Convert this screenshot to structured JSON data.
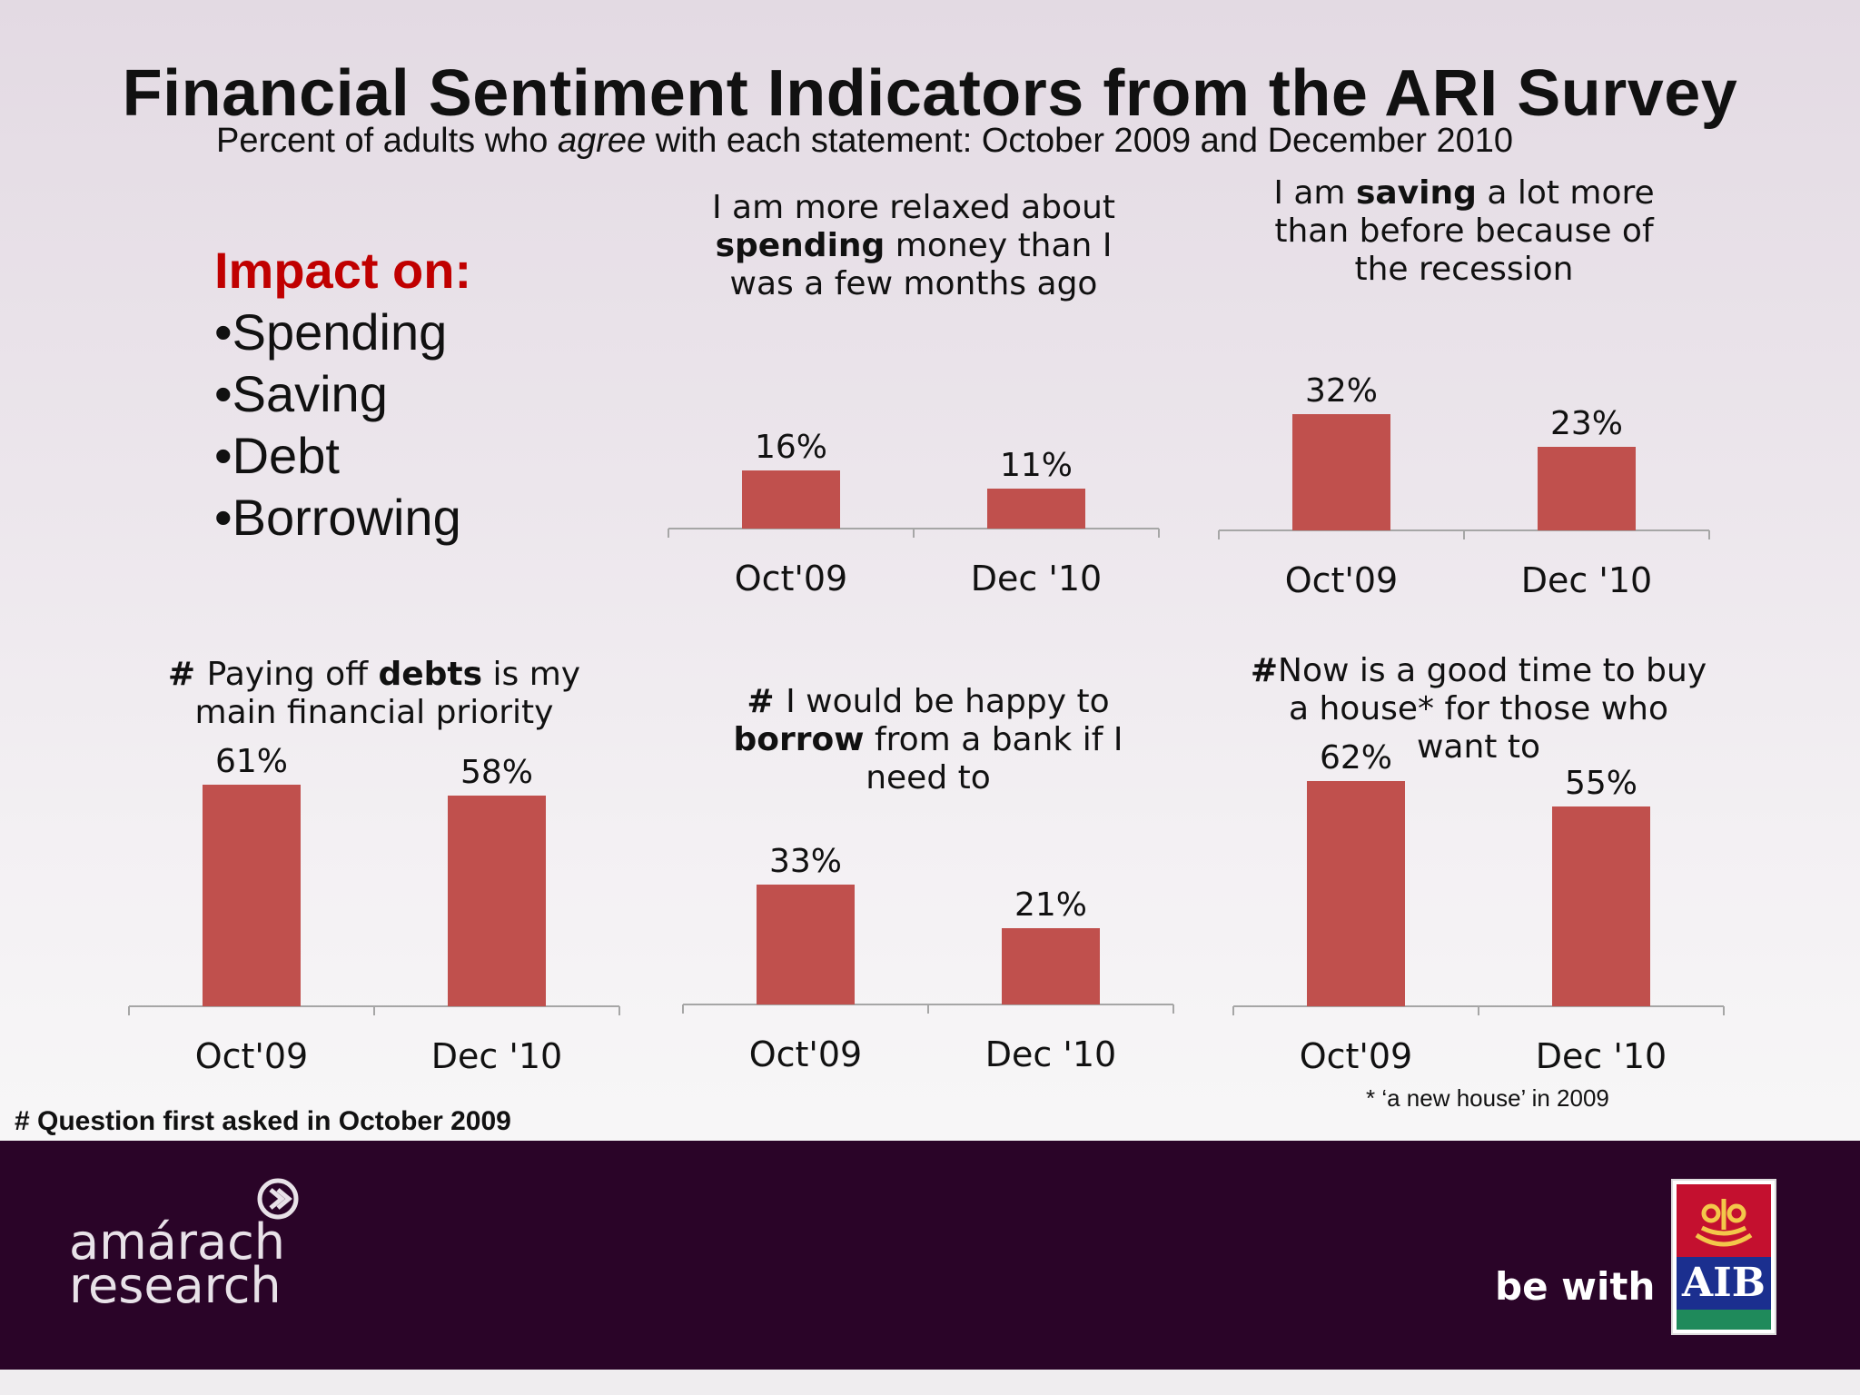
{
  "title": "Financial Sentiment Indicators from the ARI Survey",
  "subtitle": {
    "before": "Percent of adults who ",
    "emph": "agree",
    "after": " with each statement: October 2009 and December 2010"
  },
  "impact": {
    "heading": "Impact on:",
    "items": [
      "•Spending",
      "•Saving",
      "•Debt",
      "•Borrowing"
    ]
  },
  "colors": {
    "bar": "#c0504d",
    "axis": "#a6a6a6",
    "impact_heading": "#c00000",
    "footer": "#2a0428"
  },
  "chart_data": [
    {
      "type": "bar",
      "title_parts": [
        {
          "text": "I am more relaxed about",
          "bold": false,
          "newline": true
        },
        {
          "text": "spending",
          "bold": true,
          "newline": false
        },
        {
          "text": " money than I",
          "bold": false,
          "newline": true
        },
        {
          "text": "was a few months ago",
          "bold": false,
          "newline": false
        }
      ],
      "categories": [
        "Oct'09",
        "Dec '10"
      ],
      "values": [
        16,
        11
      ],
      "labels": [
        "16%",
        "11%"
      ],
      "ylim": [
        0,
        70
      ]
    },
    {
      "type": "bar",
      "title_parts": [
        {
          "text": "I am ",
          "bold": false,
          "newline": false
        },
        {
          "text": "saving",
          "bold": true,
          "newline": false
        },
        {
          "text": " a lot more",
          "bold": false,
          "newline": true
        },
        {
          "text": "than before because of",
          "bold": false,
          "newline": true
        },
        {
          "text": "the recession",
          "bold": false,
          "newline": false
        }
      ],
      "categories": [
        "Oct'09",
        "Dec '10"
      ],
      "values": [
        32,
        23
      ],
      "labels": [
        "32%",
        "23%"
      ],
      "ylim": [
        0,
        70
      ]
    },
    {
      "type": "bar",
      "title_parts": [
        {
          "text": "# ",
          "bold": true,
          "newline": false
        },
        {
          "text": "Paying  off ",
          "bold": false,
          "newline": false
        },
        {
          "text": "debts",
          "bold": true,
          "newline": false
        },
        {
          "text": " is my",
          "bold": false,
          "newline": true
        },
        {
          "text": "main financial priority",
          "bold": false,
          "newline": false
        }
      ],
      "categories": [
        "Oct'09",
        "Dec '10"
      ],
      "values": [
        61,
        58
      ],
      "labels": [
        "61%",
        "58%"
      ],
      "ylim": [
        0,
        70
      ]
    },
    {
      "type": "bar",
      "title_parts": [
        {
          "text": "# ",
          "bold": true,
          "newline": false
        },
        {
          "text": "I would be happy to",
          "bold": false,
          "newline": true
        },
        {
          "text": "borrow",
          "bold": true,
          "newline": false
        },
        {
          "text": " from a bank if I",
          "bold": false,
          "newline": true
        },
        {
          "text": "need to",
          "bold": false,
          "newline": false
        }
      ],
      "categories": [
        "Oct'09",
        "Dec '10"
      ],
      "values": [
        33,
        21
      ],
      "labels": [
        "33%",
        "21%"
      ],
      "ylim": [
        0,
        70
      ]
    },
    {
      "type": "bar",
      "title_parts": [
        {
          "text": "#",
          "bold": true,
          "newline": false
        },
        {
          "text": "Now is a good time to buy",
          "bold": false,
          "newline": true
        },
        {
          "text": "a house* for those who",
          "bold": false,
          "newline": true
        },
        {
          "text": "want to",
          "bold": false,
          "newline": false
        }
      ],
      "categories": [
        "Oct'09",
        "Dec '10"
      ],
      "values": [
        62,
        55
      ],
      "labels": [
        "62%",
        "55%"
      ],
      "ylim": [
        0,
        70
      ]
    }
  ],
  "footnote": "# Question first asked in October 2009",
  "chart_note": "* ‘a new house’ in 2009",
  "footer": {
    "brand_line1": "amárach",
    "brand_line2": "research",
    "slogan": "be with",
    "logo_text": "AIB"
  }
}
